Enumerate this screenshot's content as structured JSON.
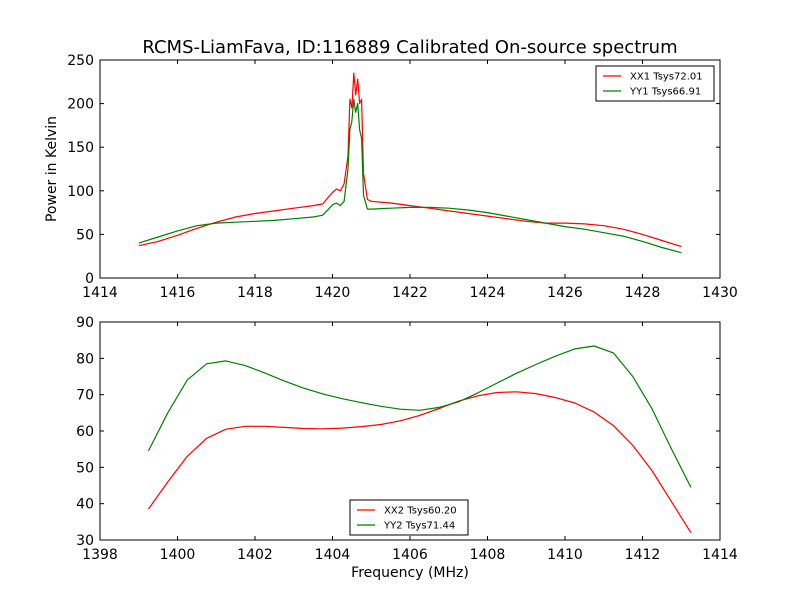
{
  "figure": {
    "title": "RCMS-LiamFava, ID:116889 Calibrated On-source spectrum"
  },
  "chart_data": [
    {
      "type": "line",
      "title": "RCMS-LiamFava, ID:116889 Calibrated On-source spectrum",
      "xlabel": "",
      "ylabel": "Power in Kelvin",
      "xlim": [
        1414,
        1430
      ],
      "ylim": [
        0,
        250
      ],
      "xticks": [
        1414,
        1416,
        1418,
        1420,
        1422,
        1424,
        1426,
        1428,
        1430
      ],
      "yticks": [
        0,
        50,
        100,
        150,
        200,
        250
      ],
      "legend_position": "top-right",
      "series": [
        {
          "name": "XX1 Tsys72.01",
          "color": "#ff0000",
          "points": [
            [
              1415.0,
              37
            ],
            [
              1415.5,
              42
            ],
            [
              1416.0,
              49
            ],
            [
              1416.5,
              57
            ],
            [
              1417.0,
              64
            ],
            [
              1417.5,
              70
            ],
            [
              1418.0,
              74
            ],
            [
              1418.5,
              77
            ],
            [
              1419.0,
              80
            ],
            [
              1419.5,
              83
            ],
            [
              1419.75,
              85
            ],
            [
              1419.9,
              93
            ],
            [
              1420.0,
              98
            ],
            [
              1420.1,
              102
            ],
            [
              1420.2,
              100
            ],
            [
              1420.3,
              108
            ],
            [
              1420.4,
              140
            ],
            [
              1420.45,
              205
            ],
            [
              1420.5,
              195
            ],
            [
              1420.55,
              235
            ],
            [
              1420.6,
              210
            ],
            [
              1420.65,
              228
            ],
            [
              1420.7,
              200
            ],
            [
              1420.75,
              205
            ],
            [
              1420.8,
              120
            ],
            [
              1420.9,
              90
            ],
            [
              1421.0,
              88
            ],
            [
              1421.5,
              86
            ],
            [
              1422.0,
              83
            ],
            [
              1422.5,
              80
            ],
            [
              1423.0,
              77
            ],
            [
              1423.5,
              74
            ],
            [
              1424.0,
              71
            ],
            [
              1424.5,
              68
            ],
            [
              1425.0,
              65
            ],
            [
              1425.5,
              63
            ],
            [
              1426.0,
              63
            ],
            [
              1426.5,
              62
            ],
            [
              1427.0,
              60
            ],
            [
              1427.5,
              56
            ],
            [
              1428.0,
              50
            ],
            [
              1428.5,
              43
            ],
            [
              1429.0,
              36
            ]
          ]
        },
        {
          "name": "YY1 Tsys66.91",
          "color": "#007f00",
          "points": [
            [
              1415.0,
              40
            ],
            [
              1415.5,
              47
            ],
            [
              1416.0,
              54
            ],
            [
              1416.5,
              60
            ],
            [
              1417.0,
              63
            ],
            [
              1417.5,
              64
            ],
            [
              1418.0,
              65
            ],
            [
              1418.5,
              66
            ],
            [
              1419.0,
              68
            ],
            [
              1419.5,
              70
            ],
            [
              1419.75,
              72
            ],
            [
              1419.9,
              79
            ],
            [
              1420.0,
              84
            ],
            [
              1420.1,
              86
            ],
            [
              1420.2,
              83
            ],
            [
              1420.3,
              88
            ],
            [
              1420.4,
              125
            ],
            [
              1420.45,
              170
            ],
            [
              1420.5,
              180
            ],
            [
              1420.55,
              205
            ],
            [
              1420.6,
              190
            ],
            [
              1420.65,
              200
            ],
            [
              1420.7,
              170
            ],
            [
              1420.75,
              160
            ],
            [
              1420.8,
              95
            ],
            [
              1420.9,
              79
            ],
            [
              1421.0,
              79
            ],
            [
              1421.5,
              80
            ],
            [
              1422.0,
              81
            ],
            [
              1422.5,
              81
            ],
            [
              1423.0,
              80
            ],
            [
              1423.5,
              78
            ],
            [
              1424.0,
              75
            ],
            [
              1424.5,
              71
            ],
            [
              1425.0,
              67
            ],
            [
              1425.5,
              63
            ],
            [
              1426.0,
              59
            ],
            [
              1426.5,
              56
            ],
            [
              1427.0,
              52
            ],
            [
              1427.5,
              48
            ],
            [
              1428.0,
              42
            ],
            [
              1428.5,
              35
            ],
            [
              1429.0,
              29
            ]
          ]
        }
      ]
    },
    {
      "type": "line",
      "title": "",
      "xlabel": "Frequency (MHz)",
      "ylabel": "",
      "xlim": [
        1398,
        1414
      ],
      "ylim": [
        30,
        90
      ],
      "xticks": [
        1398,
        1400,
        1402,
        1404,
        1406,
        1408,
        1410,
        1412,
        1414
      ],
      "yticks": [
        30,
        40,
        50,
        60,
        70,
        80,
        90
      ],
      "legend_position": "bottom-center",
      "series": [
        {
          "name": "XX2 Tsys60.20",
          "color": "#ff0000",
          "points": [
            [
              1399.25,
              38.5
            ],
            [
              1399.75,
              46
            ],
            [
              1400.25,
              53
            ],
            [
              1400.75,
              58
            ],
            [
              1401.25,
              60.5
            ],
            [
              1401.75,
              61.3
            ],
            [
              1402.25,
              61.3
            ],
            [
              1402.75,
              61
            ],
            [
              1403.25,
              60.7
            ],
            [
              1403.75,
              60.6
            ],
            [
              1404.25,
              60.8
            ],
            [
              1404.75,
              61.2
            ],
            [
              1405.25,
              61.8
            ],
            [
              1405.75,
              62.8
            ],
            [
              1406.25,
              64.3
            ],
            [
              1406.75,
              66.2
            ],
            [
              1407.25,
              68.2
            ],
            [
              1407.75,
              69.7
            ],
            [
              1408.25,
              70.6
            ],
            [
              1408.75,
              70.8
            ],
            [
              1409.25,
              70.3
            ],
            [
              1409.75,
              69.2
            ],
            [
              1410.25,
              67.7
            ],
            [
              1410.75,
              65.2
            ],
            [
              1411.25,
              61.5
            ],
            [
              1411.75,
              56
            ],
            [
              1412.25,
              49
            ],
            [
              1412.75,
              40.5
            ],
            [
              1413.25,
              32
            ]
          ]
        },
        {
          "name": "YY2 Tsys71.44",
          "color": "#007f00",
          "points": [
            [
              1399.25,
              54.5
            ],
            [
              1399.75,
              65
            ],
            [
              1400.25,
              74
            ],
            [
              1400.75,
              78.5
            ],
            [
              1401.25,
              79.3
            ],
            [
              1401.75,
              78
            ],
            [
              1402.25,
              76
            ],
            [
              1402.75,
              73.8
            ],
            [
              1403.25,
              71.8
            ],
            [
              1403.75,
              70.2
            ],
            [
              1404.25,
              68.9
            ],
            [
              1404.75,
              67.8
            ],
            [
              1405.25,
              66.8
            ],
            [
              1405.75,
              66
            ],
            [
              1406.25,
              65.7
            ],
            [
              1406.75,
              66.5
            ],
            [
              1407.25,
              68
            ],
            [
              1407.75,
              70.5
            ],
            [
              1408.25,
              73.2
            ],
            [
              1408.75,
              75.9
            ],
            [
              1409.25,
              78.3
            ],
            [
              1409.75,
              80.6
            ],
            [
              1410.25,
              82.6
            ],
            [
              1410.75,
              83.4
            ],
            [
              1411.25,
              81.5
            ],
            [
              1411.75,
              75
            ],
            [
              1412.25,
              66
            ],
            [
              1412.75,
              55
            ],
            [
              1413.25,
              44.5
            ]
          ]
        }
      ]
    }
  ]
}
